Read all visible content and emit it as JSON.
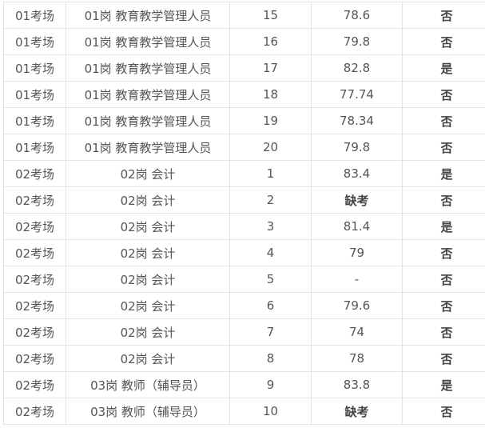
{
  "rows": [
    [
      "01考场",
      "01岗 教育教学管理人员",
      "15",
      "78.6",
      "否"
    ],
    [
      "01考场",
      "01岗 教育教学管理人员",
      "16",
      "79.8",
      "否"
    ],
    [
      "01考场",
      "01岗 教育教学管理人员",
      "17",
      "82.8",
      "是"
    ],
    [
      "01考场",
      "01岗 教育教学管理人员",
      "18",
      "77.74",
      "否"
    ],
    [
      "01考场",
      "01岗 教育教学管理人员",
      "19",
      "78.34",
      "否"
    ],
    [
      "01考场",
      "01岗 教育教学管理人员",
      "20",
      "79.8",
      "否"
    ],
    [
      "02考场",
      "02岗 会计",
      "1",
      "83.4",
      "是"
    ],
    [
      "02考场",
      "02岗 会计",
      "2",
      "缺考",
      "否"
    ],
    [
      "02考场",
      "02岗 会计",
      "3",
      "81.4",
      "是"
    ],
    [
      "02考场",
      "02岗 会计",
      "4",
      "79",
      "否"
    ],
    [
      "02考场",
      "02岗 会计",
      "5",
      "-",
      "否"
    ],
    [
      "02考场",
      "02岗 会计",
      "6",
      "79.6",
      "否"
    ],
    [
      "02考场",
      "02岗 会计",
      "7",
      "74",
      "否"
    ],
    [
      "02考场",
      "02岗 会计",
      "8",
      "78",
      "否"
    ],
    [
      "02考场",
      "03岗 教师（辅导员）",
      "9",
      "83.8",
      "是"
    ],
    [
      "02考场",
      "03岗 教师（辅导员）",
      "10",
      "缺考",
      "否"
    ]
  ]
}
